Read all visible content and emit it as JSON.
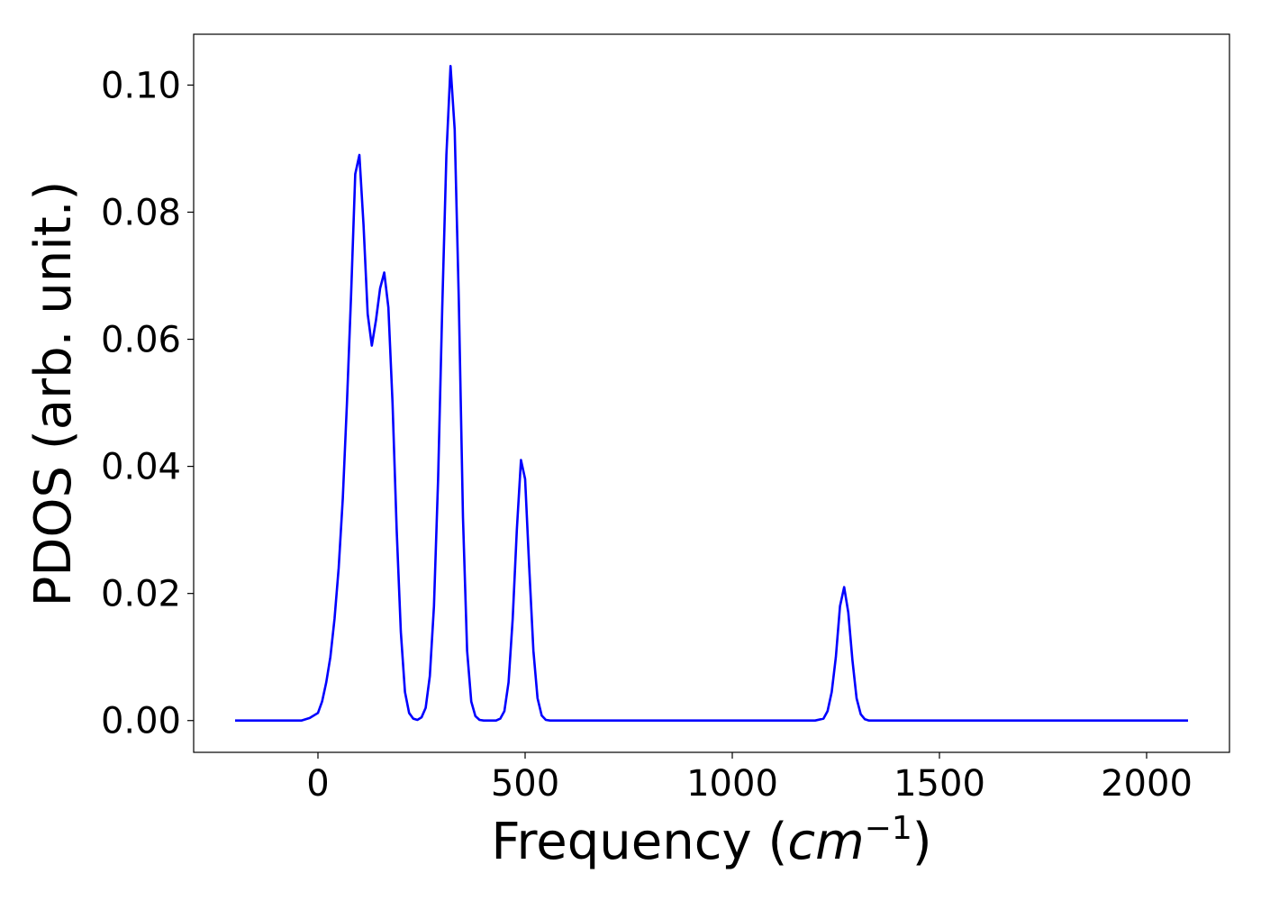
{
  "chart_data": {
    "type": "line",
    "title": "",
    "xlabel_main": "Frequency (",
    "xlabel_unit_base": "cm",
    "xlabel_unit_exp": "−1",
    "xlabel_close": ")",
    "ylabel": "PDOS (arb. unit.)",
    "xlim": [
      -300,
      2200
    ],
    "ylim": [
      -0.005,
      0.108
    ],
    "xticks": [
      0,
      500,
      1000,
      1500,
      2000
    ],
    "xtick_labels": [
      "0",
      "500",
      "1000",
      "1500",
      "2000"
    ],
    "yticks": [
      0.0,
      0.02,
      0.04,
      0.06,
      0.08,
      0.1
    ],
    "ytick_labels": [
      "0.00",
      "0.02",
      "0.04",
      "0.06",
      "0.08",
      "0.10"
    ],
    "grid": false,
    "legend": "none",
    "series": [
      {
        "color": "#0000ff",
        "x": [
          -200,
          -40,
          -20,
          0,
          10,
          20,
          30,
          40,
          50,
          60,
          70,
          80,
          90,
          100,
          110,
          120,
          130,
          140,
          150,
          160,
          170,
          180,
          190,
          200,
          210,
          220,
          230,
          240,
          250,
          260,
          270,
          280,
          290,
          300,
          310,
          320,
          330,
          340,
          350,
          360,
          370,
          380,
          390,
          400,
          410,
          420,
          430,
          440,
          450,
          460,
          470,
          480,
          490,
          500,
          510,
          520,
          530,
          540,
          550,
          560,
          570,
          580,
          590,
          600,
          610,
          620,
          630,
          640,
          650,
          700,
          1200,
          1220,
          1230,
          1240,
          1250,
          1260,
          1270,
          1280,
          1290,
          1300,
          1310,
          1320,
          1330,
          1340,
          1350,
          1400,
          1800,
          1850,
          1860,
          1870,
          1880,
          1890,
          1900,
          1910,
          1920,
          1930,
          1940,
          1950,
          1960,
          1970,
          1980,
          2000,
          2100
        ],
        "y": [
          0.0,
          0.0,
          0.0004,
          0.0012,
          0.003,
          0.006,
          0.01,
          0.016,
          0.024,
          0.035,
          0.05,
          0.067,
          0.086,
          0.089,
          0.078,
          0.064,
          0.059,
          0.063,
          0.068,
          0.0705,
          0.065,
          0.05,
          0.03,
          0.014,
          0.0045,
          0.0012,
          0.0003,
          0.0001,
          0.0005,
          0.002,
          0.007,
          0.018,
          0.038,
          0.065,
          0.089,
          0.103,
          0.093,
          0.066,
          0.032,
          0.011,
          0.003,
          0.0007,
          0.0001,
          0.0,
          0.0,
          0.0,
          0.0,
          0.0003,
          0.0015,
          0.006,
          0.016,
          0.03,
          0.041,
          0.038,
          0.024,
          0.011,
          0.0035,
          0.0008,
          0.0001,
          0.0,
          0.0,
          0.0,
          0.0,
          0.0,
          0.0,
          0.0,
          0.0,
          0.0,
          0.0,
          0.0,
          0.0,
          0.0003,
          0.0015,
          0.0045,
          0.01,
          0.018,
          0.021,
          0.017,
          0.0095,
          0.0035,
          0.001,
          0.0002,
          0.0,
          0.0,
          0.0,
          0.0,
          0.0,
          0.0,
          0.0,
          0.0,
          0.0,
          0.0,
          0.0,
          0.0,
          0.0,
          0.0,
          0.0,
          0.0,
          0.0,
          0.0,
          0.0,
          0.0,
          0.0
        ]
      }
    ]
  }
}
